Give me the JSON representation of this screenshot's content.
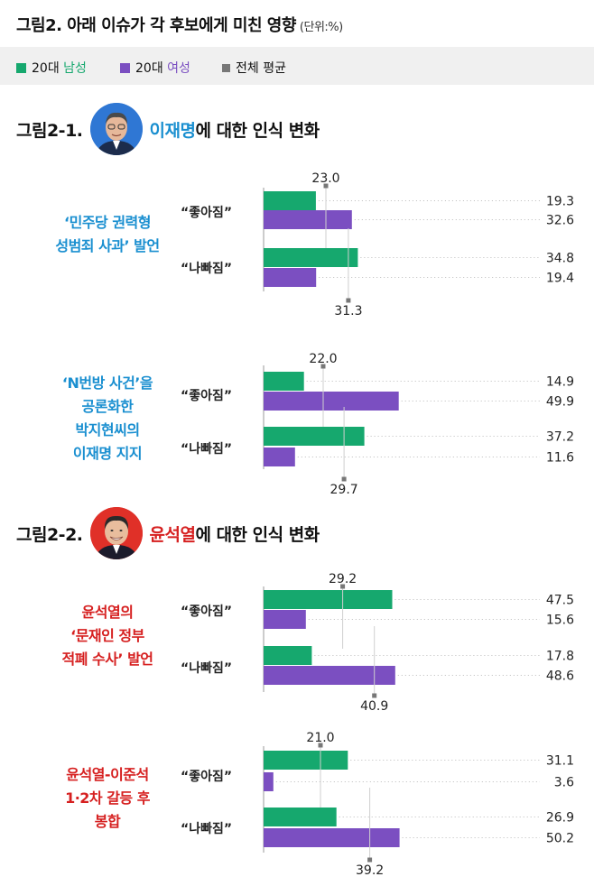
{
  "title": "그림2. 아래 이슈가 각 후보에게 미친 영향",
  "unit": "(단위:%)",
  "legend": [
    {
      "prefix": "20대 ",
      "label": "남성",
      "color": "#16a86e",
      "label_color": "#16a86e"
    },
    {
      "prefix": "20대 ",
      "label": "여성",
      "color": "#7b4fc1",
      "label_color": "#7b4fc1"
    },
    {
      "prefix": "",
      "label": "전체 평균",
      "color": "#777777",
      "label_color": "#222222"
    }
  ],
  "sections": [
    {
      "prefix": "그림2-1.",
      "name": "이재명",
      "suffix": "에 대한 인식 변화",
      "color": "#1a8fd0"
    },
    {
      "prefix": "그림2-2.",
      "name": "윤석열",
      "suffix": "에 대한 인식 변화",
      "color": "#d62020"
    }
  ],
  "chart_data": [
    {
      "type": "bar",
      "issue_lines": [
        "‘민주당 권력형",
        "성범죄 사과’ 발언"
      ],
      "issue_color": "#1a8fd0",
      "groups": [
        {
          "label": "“좋아짐”",
          "male": 19.3,
          "female": 32.6,
          "avg": 23.0
        },
        {
          "label": "“나빠짐”",
          "male": 34.8,
          "female": 19.4,
          "avg": 31.3
        }
      ],
      "xlim": [
        0,
        100
      ]
    },
    {
      "type": "bar",
      "issue_lines": [
        "‘N번방 사건’을",
        "공론화한",
        "박지현씨의",
        "이재명 지지"
      ],
      "issue_color": "#1a8fd0",
      "groups": [
        {
          "label": "“좋아짐”",
          "male": 14.9,
          "female": 49.9,
          "avg": 22.0
        },
        {
          "label": "“나빠짐”",
          "male": 37.2,
          "female": 11.6,
          "avg": 29.7
        }
      ],
      "xlim": [
        0,
        100
      ]
    },
    {
      "type": "bar",
      "issue_lines": [
        "윤석열의",
        "‘문재인 정부",
        "적폐 수사’ 발언"
      ],
      "issue_color": "#d62020",
      "groups": [
        {
          "label": "“좋아짐”",
          "male": 47.5,
          "female": 15.6,
          "avg": 29.2
        },
        {
          "label": "“나빠짐”",
          "male": 17.8,
          "female": 48.6,
          "avg": 40.9
        }
      ],
      "xlim": [
        0,
        100
      ]
    },
    {
      "type": "bar",
      "issue_lines": [
        "윤석열-이준석",
        "1·2차 갈등 후",
        "봉합"
      ],
      "issue_color": "#d62020",
      "groups": [
        {
          "label": "“좋아짐”",
          "male": 31.1,
          "female": 3.6,
          "avg": 21.0
        },
        {
          "label": "“나빠짐”",
          "male": 26.9,
          "female": 50.2,
          "avg": 39.2
        }
      ],
      "xlim": [
        0,
        100
      ]
    }
  ]
}
